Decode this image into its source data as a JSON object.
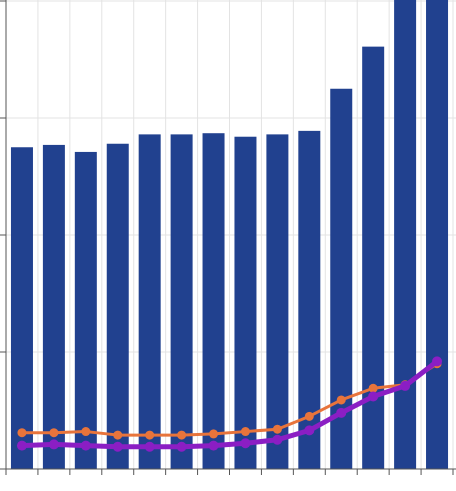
{
  "chart_data": {
    "type": "bar",
    "title": "",
    "xlabel": "",
    "ylabel": "",
    "ylim": [
      0,
      4
    ],
    "grid": true,
    "categories": [
      "",
      "",
      "",
      "",
      "",
      "",
      "",
      "",
      "",
      "",
      "",
      "",
      "",
      ""
    ],
    "series": [
      {
        "type": "bar",
        "color": "#21418f",
        "values": [
          2.75,
          2.77,
          2.71,
          2.78,
          2.86,
          2.86,
          2.87,
          2.84,
          2.86,
          2.89,
          3.25,
          3.61,
          4.08,
          4.17
        ]
      },
      {
        "type": "line",
        "color": "#e8743b",
        "values": [
          0.31,
          0.31,
          0.32,
          0.29,
          0.29,
          0.29,
          0.3,
          0.32,
          0.34,
          0.45,
          0.59,
          0.69,
          0.72,
          0.9
        ]
      },
      {
        "type": "line",
        "color": "#8b1ec4",
        "values": [
          0.2,
          0.21,
          0.2,
          0.19,
          0.19,
          0.19,
          0.2,
          0.22,
          0.25,
          0.33,
          0.48,
          0.62,
          0.71,
          0.92
        ]
      }
    ]
  },
  "colors": {
    "grid": "#e3e3e3",
    "axis": "#555555",
    "background": "#ffffff"
  }
}
